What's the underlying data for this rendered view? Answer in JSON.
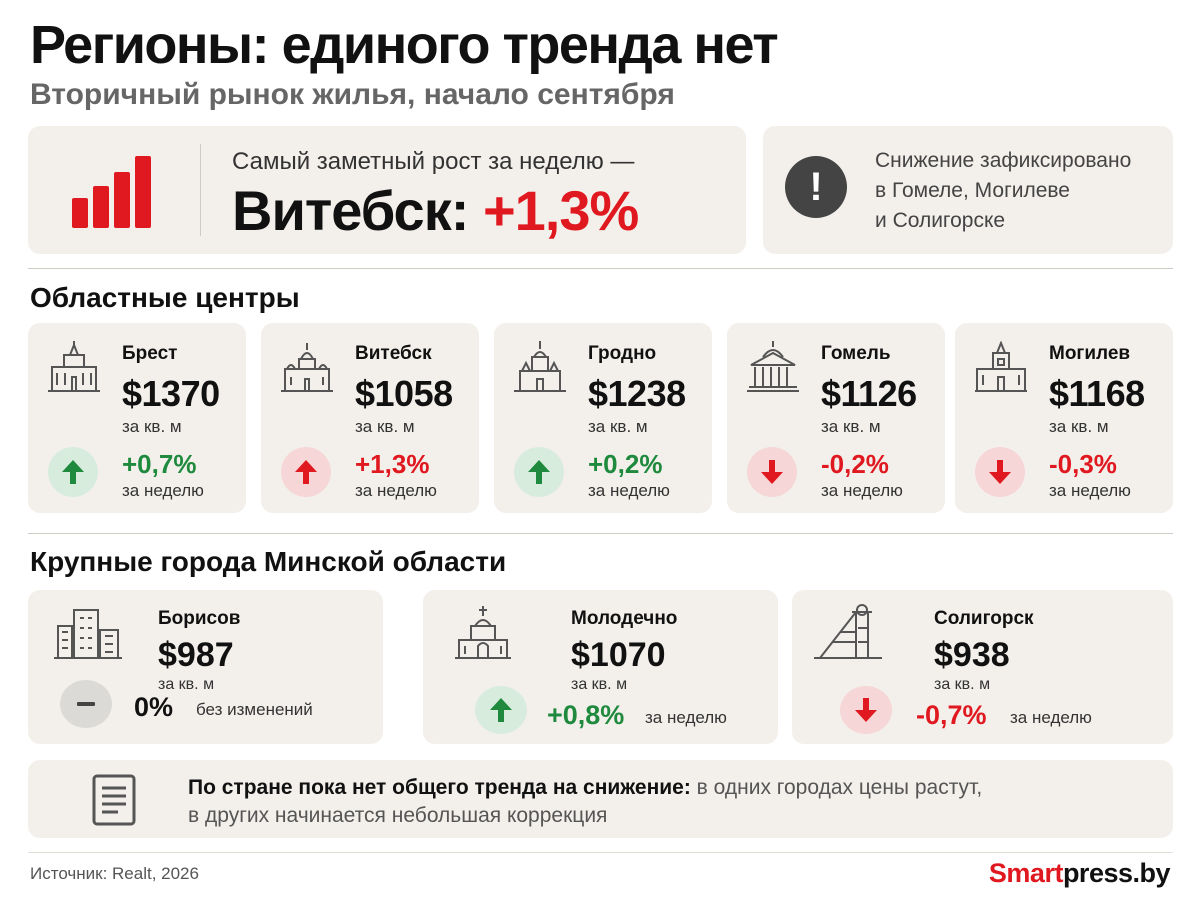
{
  "header": {
    "title": "Регионы: единого тренда нет",
    "subtitle": "Вторичный рынок жилья, начало сентября"
  },
  "highlight": {
    "caption": "Самый заметный рост за неделю —",
    "city": "Витебск:",
    "change": "+1,3%"
  },
  "decline_note": {
    "lines": [
      "Снижение зафиксировано",
      "в Гомеле, Могилеве",
      "и Солигорске"
    ]
  },
  "regional": {
    "title": "Областные центры",
    "items": [
      {
        "name": "Брест",
        "price": "$1370",
        "unit": "за кв. м",
        "change": "+0,7%",
        "period": "за неделю",
        "trend": "up"
      },
      {
        "name": "Витебск",
        "price": "$1058",
        "unit": "за кв. м",
        "change": "+1,3%",
        "period": "за неделю",
        "trend": "up-strong"
      },
      {
        "name": "Гродно",
        "price": "$1238",
        "unit": "за кв. м",
        "change": "+0,2%",
        "period": "за неделю",
        "trend": "up"
      },
      {
        "name": "Гомель",
        "price": "$1126",
        "unit": "за кв. м",
        "change": "-0,2%",
        "period": "за неделю",
        "trend": "down"
      },
      {
        "name": "Могилев",
        "price": "$1168",
        "unit": "за кв. м",
        "change": "-0,3%",
        "period": "за неделю",
        "trend": "down"
      }
    ]
  },
  "minsk_region": {
    "title": "Крупные города Минской области",
    "items": [
      {
        "name": "Борисов",
        "price": "$987",
        "unit": "за кв. м",
        "change": "0%",
        "period": "без изменений",
        "trend": "neutral"
      },
      {
        "name": "Молодечно",
        "price": "$1070",
        "unit": "за кв. м",
        "change": "+0,8%",
        "period": "за неделю",
        "trend": "up"
      },
      {
        "name": "Солигорск",
        "price": "$938",
        "unit": "за кв. м",
        "change": "-0,7%",
        "period": "за неделю",
        "trend": "down"
      }
    ]
  },
  "summary": {
    "bold": "По стране пока нет общего тренда на снижение:",
    "rest1": " в одних городах цены растут,",
    "line2": "в других начинается небольшая коррекция"
  },
  "footer": {
    "source": "Источник: Realt, 2026",
    "brand_part1": "Smart",
    "brand_part2": "press.by"
  },
  "colors": {
    "accent_red": "#e0181f",
    "accent_green": "#1f8a3e",
    "card_bg": "#f3f0eb"
  }
}
